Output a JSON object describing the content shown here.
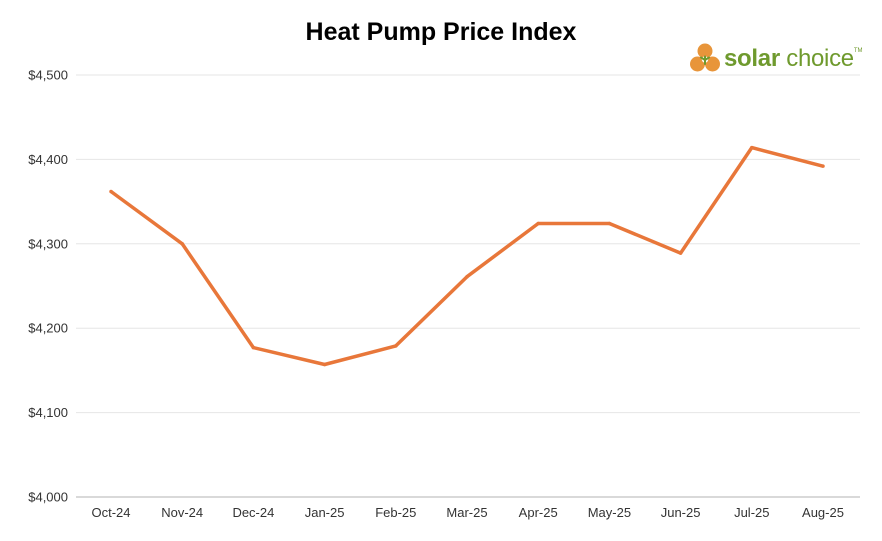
{
  "logo": {
    "text_bold": "solar",
    "text_light": " choice",
    "tm": "TM",
    "color": "#6f9a2e",
    "accent_orange": "#e8953a"
  },
  "chart_data": {
    "type": "line",
    "title": "Heat Pump Price Index",
    "xlabel": "",
    "ylabel": "",
    "ylim": [
      4000,
      4500
    ],
    "yticks": [
      4000,
      4100,
      4200,
      4300,
      4400,
      4500
    ],
    "ytick_labels": [
      "$4,000",
      "$4,100",
      "$4,200",
      "$4,300",
      "$4,400",
      "$4,500"
    ],
    "categories": [
      "Oct-24",
      "Nov-24",
      "Dec-24",
      "Jan-25",
      "Feb-25",
      "Mar-25",
      "Apr-25",
      "May-25",
      "Jun-25",
      "Jul-25",
      "Aug-25"
    ],
    "series": [
      {
        "values": [
          4362,
          4300,
          4177,
          4157,
          4179,
          4261,
          4324,
          4324,
          4289,
          4414,
          4392
        ],
        "color": "#e8773a"
      }
    ],
    "grid": true,
    "gridline_color": "#e6e6e6",
    "axis_color": "#b3b3b3"
  }
}
